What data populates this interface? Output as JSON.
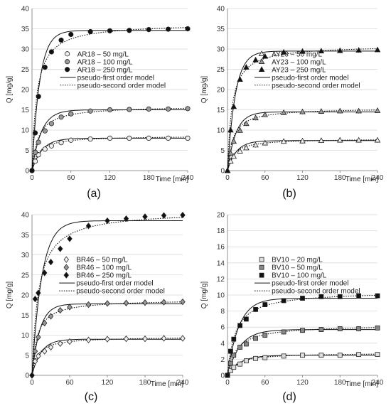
{
  "chart_data": [
    {
      "type": "scatter",
      "panel_label": "(a)",
      "xlabel": "Time [min]",
      "ylabel": "Q [mg/g]",
      "xlim": [
        0,
        240
      ],
      "ylim": [
        0,
        40
      ],
      "xticks": [
        0,
        60,
        120,
        180,
        240
      ],
      "yticks": [
        0,
        5,
        10,
        15,
        20,
        25,
        30,
        35,
        40
      ],
      "legend_position": "center-right",
      "grid": "horizontal",
      "model_labels": [
        "pseudo-first order model",
        "pseudo-second order model"
      ],
      "x": [
        0,
        5,
        10,
        20,
        30,
        45,
        60,
        90,
        120,
        150,
        180,
        210,
        240
      ],
      "series": [
        {
          "name": "AR18 – 50 mg/L",
          "marker": "circle",
          "fill": "#eeeeee",
          "values": [
            0,
            2.3,
            3.9,
            5.3,
            6.1,
            6.9,
            7.5,
            7.8,
            8.0,
            8.0,
            8.0,
            8.0,
            8.0
          ],
          "qe1": 8.0,
          "k1": 0.065,
          "qe2": 8.6,
          "k2": 0.012
        },
        {
          "name": "AR18 – 100 mg/L",
          "marker": "circle",
          "fill": "#9a9a9a",
          "values": [
            0,
            4.5,
            7.0,
            9.8,
            11.6,
            13.2,
            14.0,
            14.7,
            15.0,
            15.1,
            15.2,
            15.2,
            15.3
          ],
          "qe1": 15.0,
          "k1": 0.07,
          "qe2": 16.0,
          "k2": 0.0065
        },
        {
          "name": "AR18 – 250 mg/L",
          "marker": "circle",
          "fill": "#111111",
          "values": [
            0,
            9.3,
            18.3,
            25.5,
            29.3,
            32.2,
            33.6,
            34.3,
            34.5,
            34.6,
            34.8,
            34.9,
            35.0
          ],
          "qe1": 34.6,
          "k1": 0.085,
          "qe2": 36.4,
          "k2": 0.0038
        }
      ]
    },
    {
      "type": "scatter",
      "panel_label": "(b)",
      "xlabel": "Time [min]",
      "ylabel": "Q [mg/g]",
      "xlim": [
        0,
        240
      ],
      "ylim": [
        0,
        40
      ],
      "xticks": [
        0,
        60,
        120,
        180,
        240
      ],
      "yticks": [
        0,
        5,
        10,
        15,
        20,
        25,
        30,
        35,
        40
      ],
      "legend_position": "center-right",
      "grid": "horizontal",
      "model_labels": [
        "pseudo-first order model",
        "pseudo-second order model"
      ],
      "x": [
        0,
        5,
        10,
        20,
        30,
        45,
        60,
        90,
        120,
        150,
        180,
        210,
        240
      ],
      "series": [
        {
          "name": "AY23 – 50 mg/L",
          "marker": "triangle",
          "fill": "#eeeeee",
          "values": [
            0,
            2.3,
            3.5,
            4.8,
            5.6,
            6.3,
            6.8,
            7.2,
            7.3,
            7.4,
            7.5,
            7.5,
            7.5
          ],
          "qe1": 7.4,
          "k1": 0.07,
          "qe2": 7.9,
          "k2": 0.013
        },
        {
          "name": "AY23 – 100 mg/L",
          "marker": "triangle",
          "fill": "#9a9a9a",
          "values": [
            0,
            4.3,
            7.2,
            9.9,
            11.6,
            13.0,
            13.8,
            14.3,
            14.5,
            14.6,
            14.7,
            14.7,
            14.8
          ],
          "qe1": 14.5,
          "k1": 0.075,
          "qe2": 15.5,
          "k2": 0.0075
        },
        {
          "name": "AY23 – 250 mg/L",
          "marker": "triangle",
          "fill": "#111111",
          "values": [
            0,
            10.0,
            15.8,
            22.5,
            25.5,
            27.3,
            28.2,
            29.2,
            29.4,
            29.5,
            29.6,
            29.7,
            29.8
          ],
          "qe1": 29.5,
          "k1": 0.08,
          "qe2": 31.0,
          "k2": 0.0045
        }
      ]
    },
    {
      "type": "scatter",
      "panel_label": "(c)",
      "xlabel": "Time [min]",
      "ylabel": "Q [mg/g]",
      "xlim": [
        0,
        240
      ],
      "ylim": [
        0,
        40
      ],
      "xticks": [
        0,
        60,
        120,
        180,
        240
      ],
      "yticks": [
        0,
        5,
        10,
        15,
        20,
        25,
        30,
        35,
        40
      ],
      "legend_position": "center-right",
      "grid": "horizontal",
      "model_labels": [
        "pseudo-first order model",
        "pseudo-second order model"
      ],
      "x": [
        0,
        5,
        10,
        20,
        30,
        45,
        60,
        90,
        120,
        150,
        180,
        210,
        240
      ],
      "series": [
        {
          "name": "BR46 – 50 mg/L",
          "marker": "diamond",
          "fill": "#eeeeee",
          "values": [
            0,
            3.5,
            4.8,
            6.0,
            7.0,
            7.9,
            8.4,
            8.8,
            9.0,
            9.1,
            9.1,
            9.2,
            9.2
          ],
          "qe1": 9.0,
          "k1": 0.07,
          "qe2": 9.6,
          "k2": 0.012
        },
        {
          "name": "BR46 – 100 mg/L",
          "marker": "diamond",
          "fill": "#9a9a9a",
          "values": [
            0,
            6.0,
            9.5,
            13.0,
            14.7,
            16.2,
            17.0,
            17.6,
            17.9,
            18.0,
            18.1,
            18.2,
            18.3
          ],
          "qe1": 17.8,
          "k1": 0.08,
          "qe2": 18.9,
          "k2": 0.0065
        },
        {
          "name": "BR46 – 250 mg/L",
          "marker": "diamond",
          "fill": "#111111",
          "values": [
            0,
            19.0,
            20.5,
            25.5,
            28.2,
            31.5,
            34.0,
            37.2,
            38.5,
            39.0,
            39.5,
            39.8,
            39.9
          ],
          "qe1": 38.5,
          "k1": 0.065,
          "qe2": 41.0,
          "k2": 0.0024
        }
      ]
    },
    {
      "type": "scatter",
      "panel_label": "(d)",
      "xlabel": "Time [min]",
      "ylabel": "Q [mg/g]",
      "xlim": [
        0,
        240
      ],
      "ylim": [
        0,
        20
      ],
      "xticks": [
        0,
        60,
        120,
        180,
        240
      ],
      "yticks": [
        0,
        2,
        4,
        6,
        8,
        10,
        12,
        14,
        16,
        18,
        20
      ],
      "legend_position": "center-right",
      "grid": "horizontal",
      "model_labels": [
        "pseudo-first order model",
        "pseudo-second order model"
      ],
      "x": [
        0,
        5,
        10,
        20,
        30,
        45,
        60,
        90,
        120,
        150,
        180,
        210,
        240
      ],
      "series": [
        {
          "name": "BV10 – 20 mg/L",
          "marker": "square",
          "fill": "#dddddd",
          "values": [
            0,
            0.6,
            1.0,
            1.4,
            1.8,
            2.1,
            2.2,
            2.4,
            2.5,
            2.5,
            2.5,
            2.6,
            2.6
          ],
          "qe1": 2.5,
          "k1": 0.05,
          "qe2": 2.8,
          "k2": 0.025
        },
        {
          "name": "BV10 – 50 mg/L",
          "marker": "square",
          "fill": "#888888",
          "values": [
            0,
            1.5,
            2.5,
            3.5,
            3.9,
            4.6,
            5.0,
            5.4,
            5.6,
            5.7,
            5.8,
            5.8,
            5.9
          ],
          "qe1": 5.7,
          "k1": 0.05,
          "qe2": 6.3,
          "k2": 0.011
        },
        {
          "name": "BV10 – 100 mg/L",
          "marker": "square",
          "fill": "#111111",
          "values": [
            0,
            3.0,
            4.5,
            6.2,
            7.0,
            8.2,
            8.8,
            9.3,
            9.6,
            9.8,
            9.8,
            9.9,
            9.9
          ],
          "qe1": 9.6,
          "k1": 0.055,
          "qe2": 10.5,
          "k2": 0.0075
        }
      ]
    }
  ]
}
